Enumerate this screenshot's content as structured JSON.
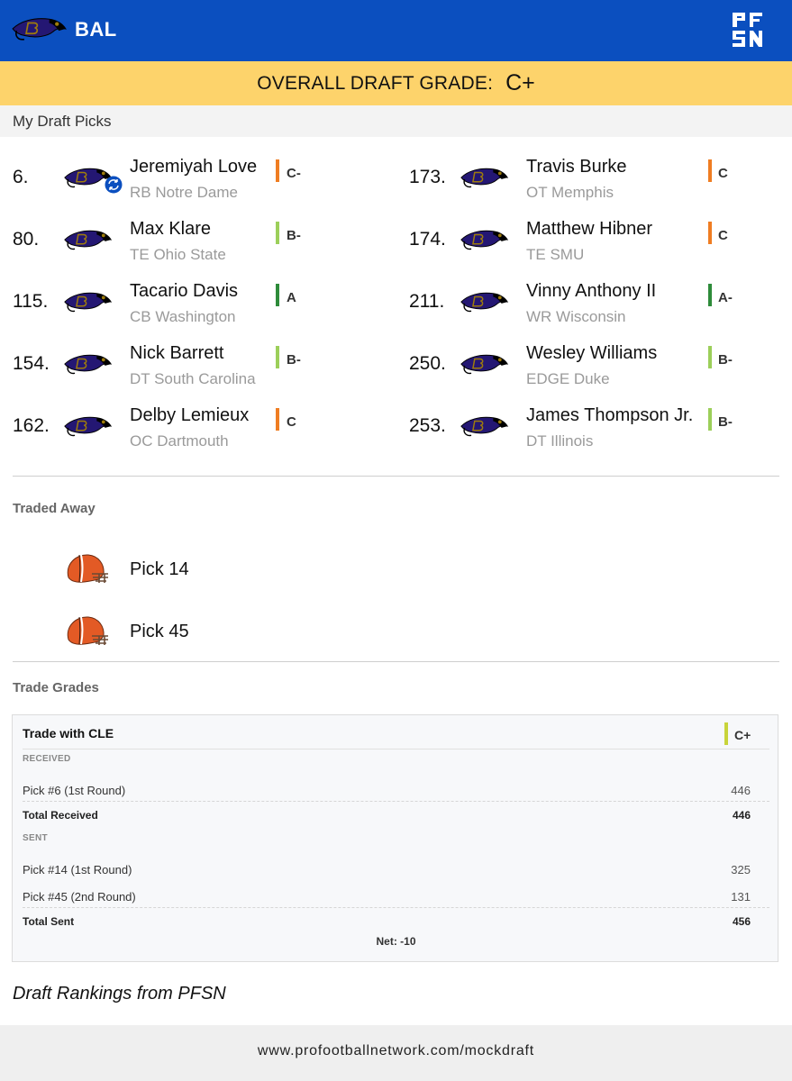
{
  "header": {
    "team_abbr": "BAL",
    "brand_logo": "PFSN",
    "brand_color": "#0b4fbf"
  },
  "grade_banner": {
    "label": "OVERALL DRAFT GRADE:",
    "grade": "C+",
    "color": "#fdd36b"
  },
  "section_title": "My Draft Picks",
  "picks_left": [
    {
      "num": "6.",
      "name": "Jeremiyah Love",
      "sub": "RB Notre Dame",
      "grade": "C-",
      "grade_color": "#ef7d22",
      "traded": true
    },
    {
      "num": "80.",
      "name": "Max Klare",
      "sub": "TE Ohio State",
      "grade": "B-",
      "grade_color": "#9ccf5a",
      "traded": false
    },
    {
      "num": "115.",
      "name": "Tacario Davis",
      "sub": "CB Washington",
      "grade": "A",
      "grade_color": "#2e8b3a",
      "traded": false
    },
    {
      "num": "154.",
      "name": "Nick Barrett",
      "sub": "DT South Carolina",
      "grade": "B-",
      "grade_color": "#9ccf5a",
      "traded": false
    },
    {
      "num": "162.",
      "name": "Delby Lemieux",
      "sub": "OC Dartmouth",
      "grade": "C",
      "grade_color": "#ef7d22",
      "traded": false
    }
  ],
  "picks_right": [
    {
      "num": "173.",
      "name": "Travis Burke",
      "sub": "OT Memphis",
      "grade": "C",
      "grade_color": "#ef7d22"
    },
    {
      "num": "174.",
      "name": "Matthew Hibner",
      "sub": "TE SMU",
      "grade": "C",
      "grade_color": "#ef7d22"
    },
    {
      "num": "211.",
      "name": "Vinny Anthony II",
      "sub": "WR Wisconsin",
      "grade": "A-",
      "grade_color": "#2e8b3a"
    },
    {
      "num": "250.",
      "name": "Wesley Williams",
      "sub": "EDGE Duke",
      "grade": "B-",
      "grade_color": "#9ccf5a"
    },
    {
      "num": "253.",
      "name": "James Thompson Jr.",
      "sub": "DT Illinois",
      "grade": "B-",
      "grade_color": "#9ccf5a"
    }
  ],
  "traded_away": {
    "title": "Traded Away",
    "items": [
      {
        "label": "Pick 14",
        "icon": "browns-helmet-icon"
      },
      {
        "label": "Pick 45",
        "icon": "browns-helmet-icon"
      }
    ]
  },
  "trade_grades": {
    "title": "Trade Grades",
    "trade": {
      "title": "Trade with CLE",
      "grade": "C+",
      "received_label": "RECEIVED",
      "received": [
        {
          "label": "Pick #6 (1st Round)",
          "value": "446"
        }
      ],
      "total_received_label": "Total Received",
      "total_received": "446",
      "sent_label": "SENT",
      "sent": [
        {
          "label": "Pick #14 (1st Round)",
          "value": "325"
        },
        {
          "label": "Pick #45 (2nd Round)",
          "value": "131"
        }
      ],
      "total_sent_label": "Total Sent",
      "total_sent": "456",
      "net": "Net: -10"
    }
  },
  "footer_note": "Draft Rankings from PFSN",
  "footer_url": "www.profootballnetwork.com/mockdraft"
}
